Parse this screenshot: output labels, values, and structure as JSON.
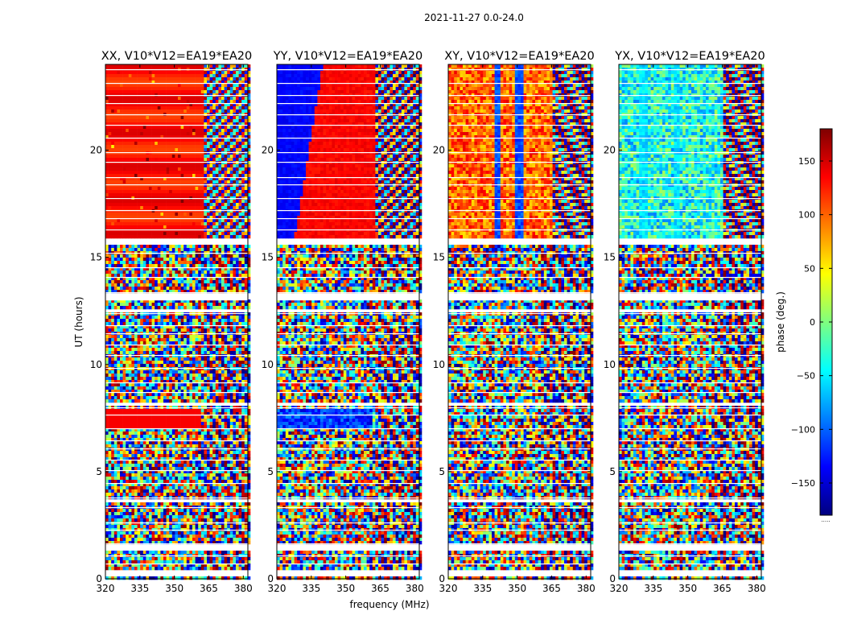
{
  "chart_data": {
    "type": "heatmap",
    "title": "2021-11-27 0.0-24.0",
    "xlabel": "frequency (MHz)",
    "ylabel": "UT (hours)",
    "xlim": [
      320,
      382
    ],
    "ylim": [
      0,
      24
    ],
    "x_ticks": [
      320,
      335,
      350,
      365,
      380
    ],
    "y_ticks": [
      0,
      5,
      10,
      15,
      20
    ],
    "colorbar": {
      "label": "phase (deg.)",
      "range": [
        -180,
        180
      ],
      "ticks": [
        150,
        100,
        50,
        0,
        -50,
        -100,
        -150
      ],
      "tick_labels": [
        "150",
        "100",
        "50",
        "0",
        "−50",
        "−100",
        "−150"
      ],
      "colormap": [
        "#00007f",
        "#0000ff",
        "#007fff",
        "#00ffff",
        "#7fff7f",
        "#ffff00",
        "#ff7f00",
        "#ff0000",
        "#7f0000"
      ],
      "footer": "....."
    },
    "panels": [
      {
        "title": "XX, V10*V12=EA19*EA20",
        "pattern": "xx"
      },
      {
        "title": "YY, V10*V12=EA19*EA20",
        "pattern": "yy"
      },
      {
        "title": "XY, V10*V12=EA19*EA20",
        "pattern": "xy"
      },
      {
        "title": "YX, V10*V12=EA19*EA20",
        "pattern": "yx"
      }
    ],
    "blank_bands_hours": [
      [
        15.6,
        15.85
      ],
      [
        13.05,
        13.3
      ],
      [
        12.4,
        12.6
      ],
      [
        8.05,
        8.25
      ],
      [
        3.6,
        3.75
      ],
      [
        1.3,
        1.55
      ],
      [
        0.1,
        0.4
      ]
    ]
  }
}
